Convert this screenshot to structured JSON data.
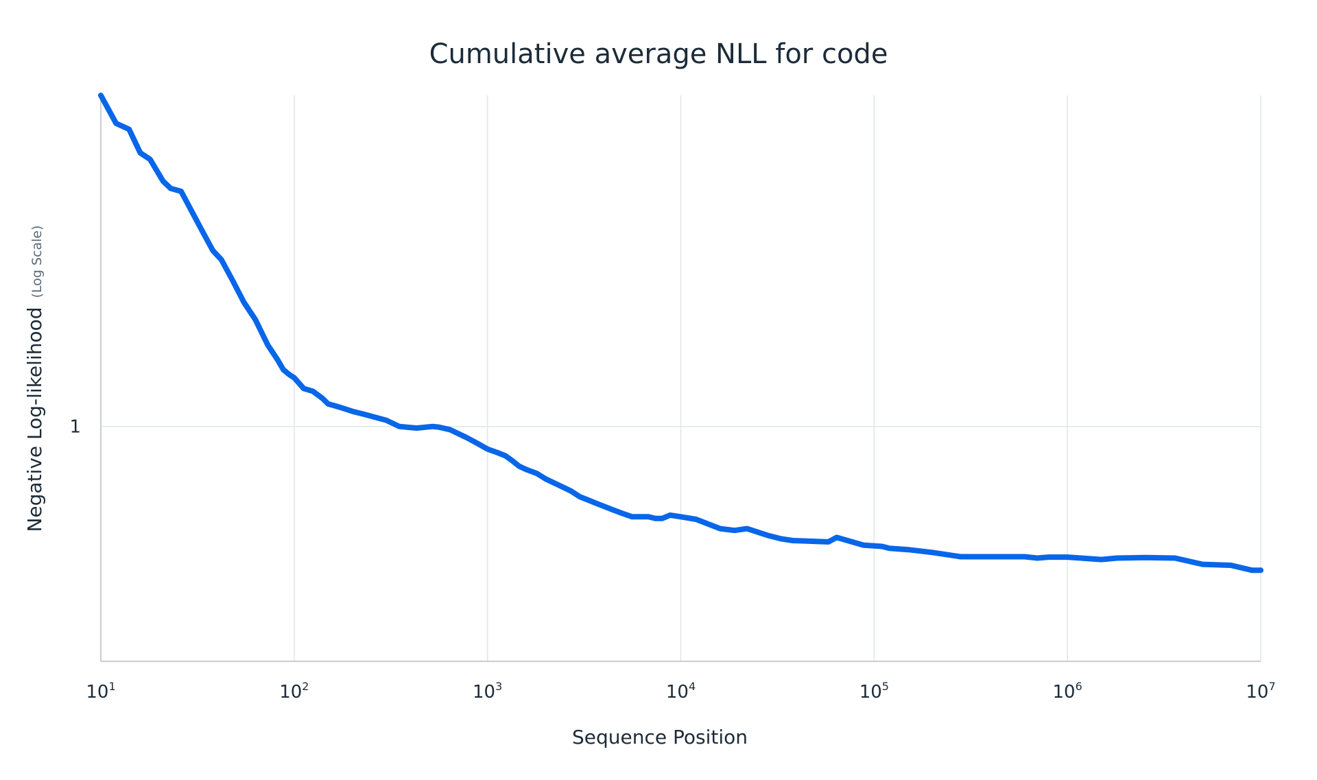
{
  "chart_data": {
    "type": "line",
    "title": "Cumulative average NLL for code",
    "xlabel": "Sequence Position",
    "ylabel": "Negative Log-likelihood",
    "ylabel_note": "(Log Scale)",
    "x_scale": "log",
    "y_scale": "log",
    "xlim": [
      10,
      10000000
    ],
    "ylim": [
      0.47,
      2.9
    ],
    "grid": true,
    "legend": "none",
    "x_ticks": [
      {
        "value": 10,
        "base": "10",
        "exp": "1"
      },
      {
        "value": 100,
        "base": "10",
        "exp": "2"
      },
      {
        "value": 1000,
        "base": "10",
        "exp": "3"
      },
      {
        "value": 10000,
        "base": "10",
        "exp": "4"
      },
      {
        "value": 100000,
        "base": "10",
        "exp": "5"
      },
      {
        "value": 1000000,
        "base": "10",
        "exp": "6"
      },
      {
        "value": 10000000,
        "base": "10",
        "exp": "7"
      }
    ],
    "y_ticks": [
      {
        "value": 1,
        "label": "1"
      }
    ],
    "colors": {
      "series": "#0866e8",
      "grid": "#e2e5e8",
      "axis": "#c9cdd1",
      "text": "#1c2b39"
    },
    "series": [
      {
        "x": [
          10,
          12,
          14,
          16,
          18,
          21,
          23,
          26,
          34,
          38,
          42,
          48,
          55,
          63,
          73,
          82,
          88,
          95,
          100,
          112,
          125,
          140,
          150,
          160,
          180,
          200,
          230,
          300,
          350,
          430,
          520,
          560,
          640,
          780,
          900,
          1000,
          1120,
          1240,
          1350,
          1460,
          1600,
          1800,
          2000,
          2300,
          2700,
          3000,
          3300,
          3700,
          4400,
          5000,
          5600,
          6800,
          7400,
          8000,
          8800,
          10000,
          12000,
          16000,
          19000,
          22000,
          28000,
          33000,
          38000,
          44000,
          58000,
          64000,
          88000,
          110000,
          120000,
          150000,
          200000,
          280000,
          500000,
          600000,
          700000,
          800000,
          1000000,
          1500000,
          1800000,
          2500000,
          3600000,
          5000000,
          7000000,
          9000000,
          10000000
        ],
        "values": [
          2.9,
          2.65,
          2.6,
          2.41,
          2.36,
          2.2,
          2.15,
          2.13,
          1.86,
          1.76,
          1.71,
          1.6,
          1.49,
          1.41,
          1.3,
          1.24,
          1.2,
          1.18,
          1.17,
          1.13,
          1.12,
          1.095,
          1.075,
          1.07,
          1.06,
          1.05,
          1.04,
          1.02,
          1.0,
          0.995,
          1.0,
          0.998,
          0.99,
          0.965,
          0.945,
          0.93,
          0.92,
          0.91,
          0.895,
          0.88,
          0.87,
          0.86,
          0.845,
          0.83,
          0.813,
          0.798,
          0.79,
          0.78,
          0.766,
          0.756,
          0.748,
          0.748,
          0.744,
          0.744,
          0.752,
          0.748,
          0.742,
          0.72,
          0.716,
          0.72,
          0.705,
          0.697,
          0.693,
          0.692,
          0.69,
          0.7,
          0.683,
          0.68,
          0.676,
          0.673,
          0.667,
          0.658,
          0.658,
          0.658,
          0.655,
          0.657,
          0.657,
          0.652,
          0.655,
          0.656,
          0.655,
          0.642,
          0.64,
          0.63,
          0.63
        ]
      }
    ]
  }
}
